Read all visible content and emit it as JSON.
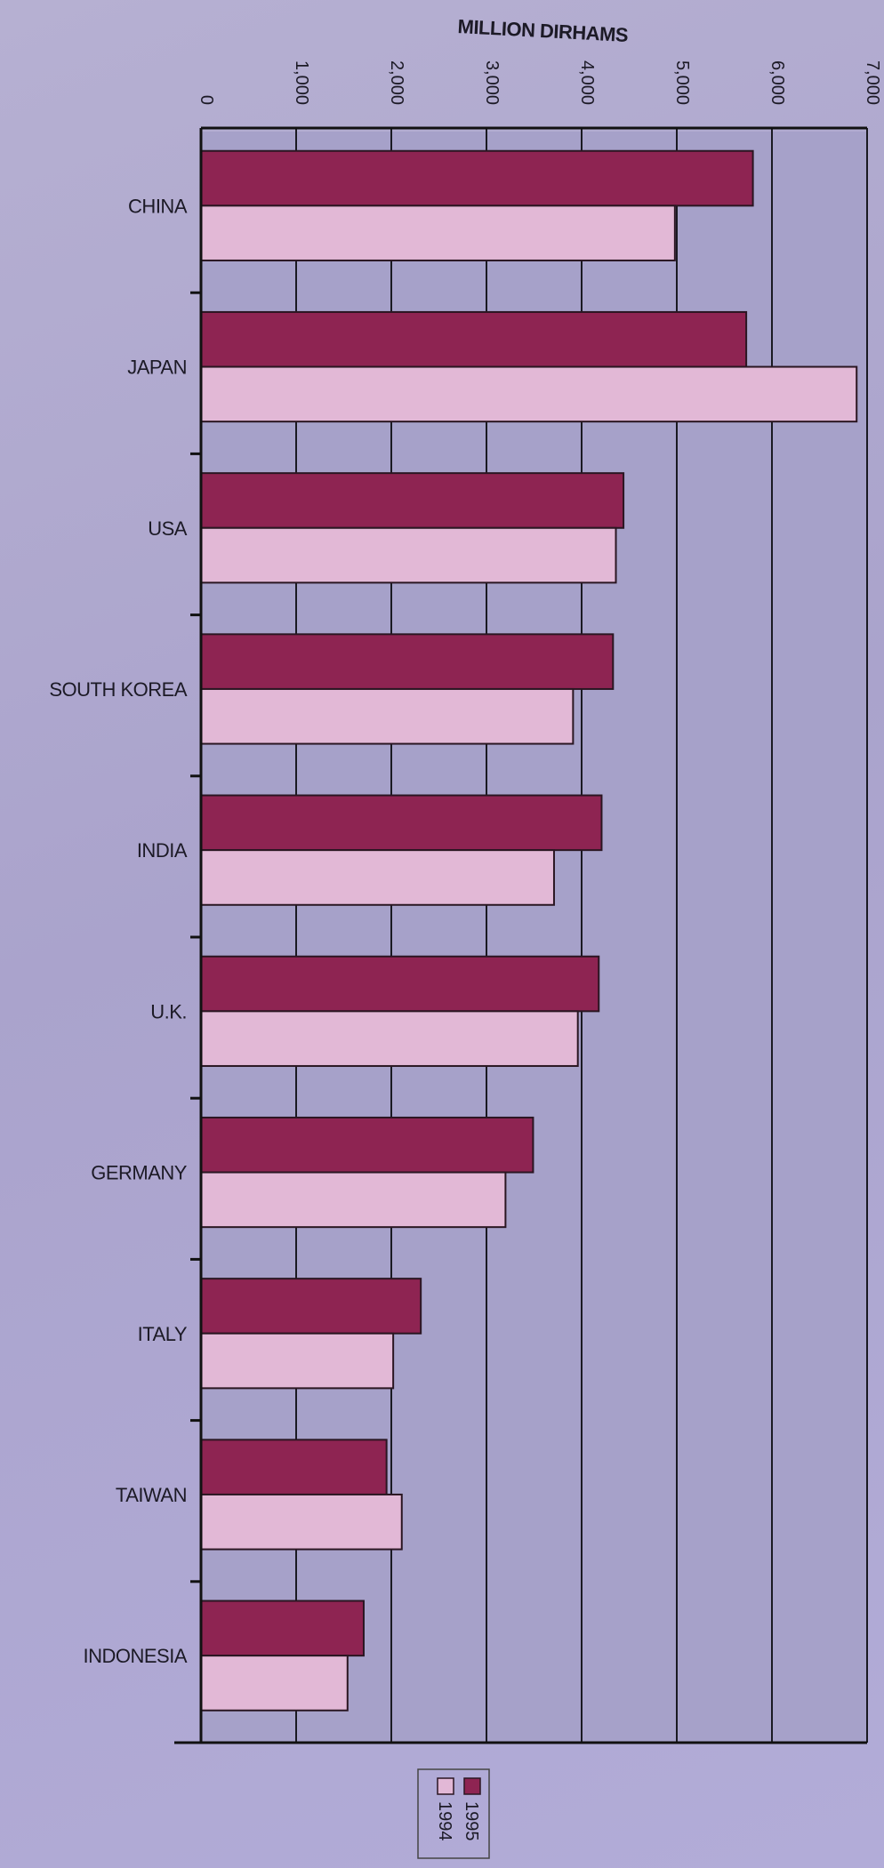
{
  "chart_data": {
    "type": "bar",
    "orientation": "horizontal",
    "xlabel": "MILLION DIRHAMS",
    "xlim": [
      0,
      7000
    ],
    "x_ticks": [
      "0",
      "1,000",
      "2,000",
      "3,000",
      "4,000",
      "5,000",
      "6,000",
      "7,000"
    ],
    "categories": [
      "CHINA",
      "JAPAN",
      "USA",
      "SOUTH KOREA",
      "INDIA",
      "U.K.",
      "GERMANY",
      "ITALY",
      "TAIWAN",
      "INDONESIA"
    ],
    "series": [
      {
        "name": "1995",
        "values": [
          5800,
          5730,
          4440,
          4330,
          4210,
          4180,
          3490,
          2310,
          1950,
          1710
        ]
      },
      {
        "name": "1994",
        "values": [
          4980,
          6890,
          4360,
          3910,
          3710,
          3960,
          3200,
          2020,
          2110,
          1540
        ]
      }
    ],
    "legend_position": "bottom-center",
    "grid": true,
    "colors": {
      "1995": "#8e2452",
      "1994": "#e2b8d6",
      "plot_band": "#a6a1c9",
      "plot_band_alt": "#9d97c2",
      "grid": "#1a1a22"
    }
  }
}
